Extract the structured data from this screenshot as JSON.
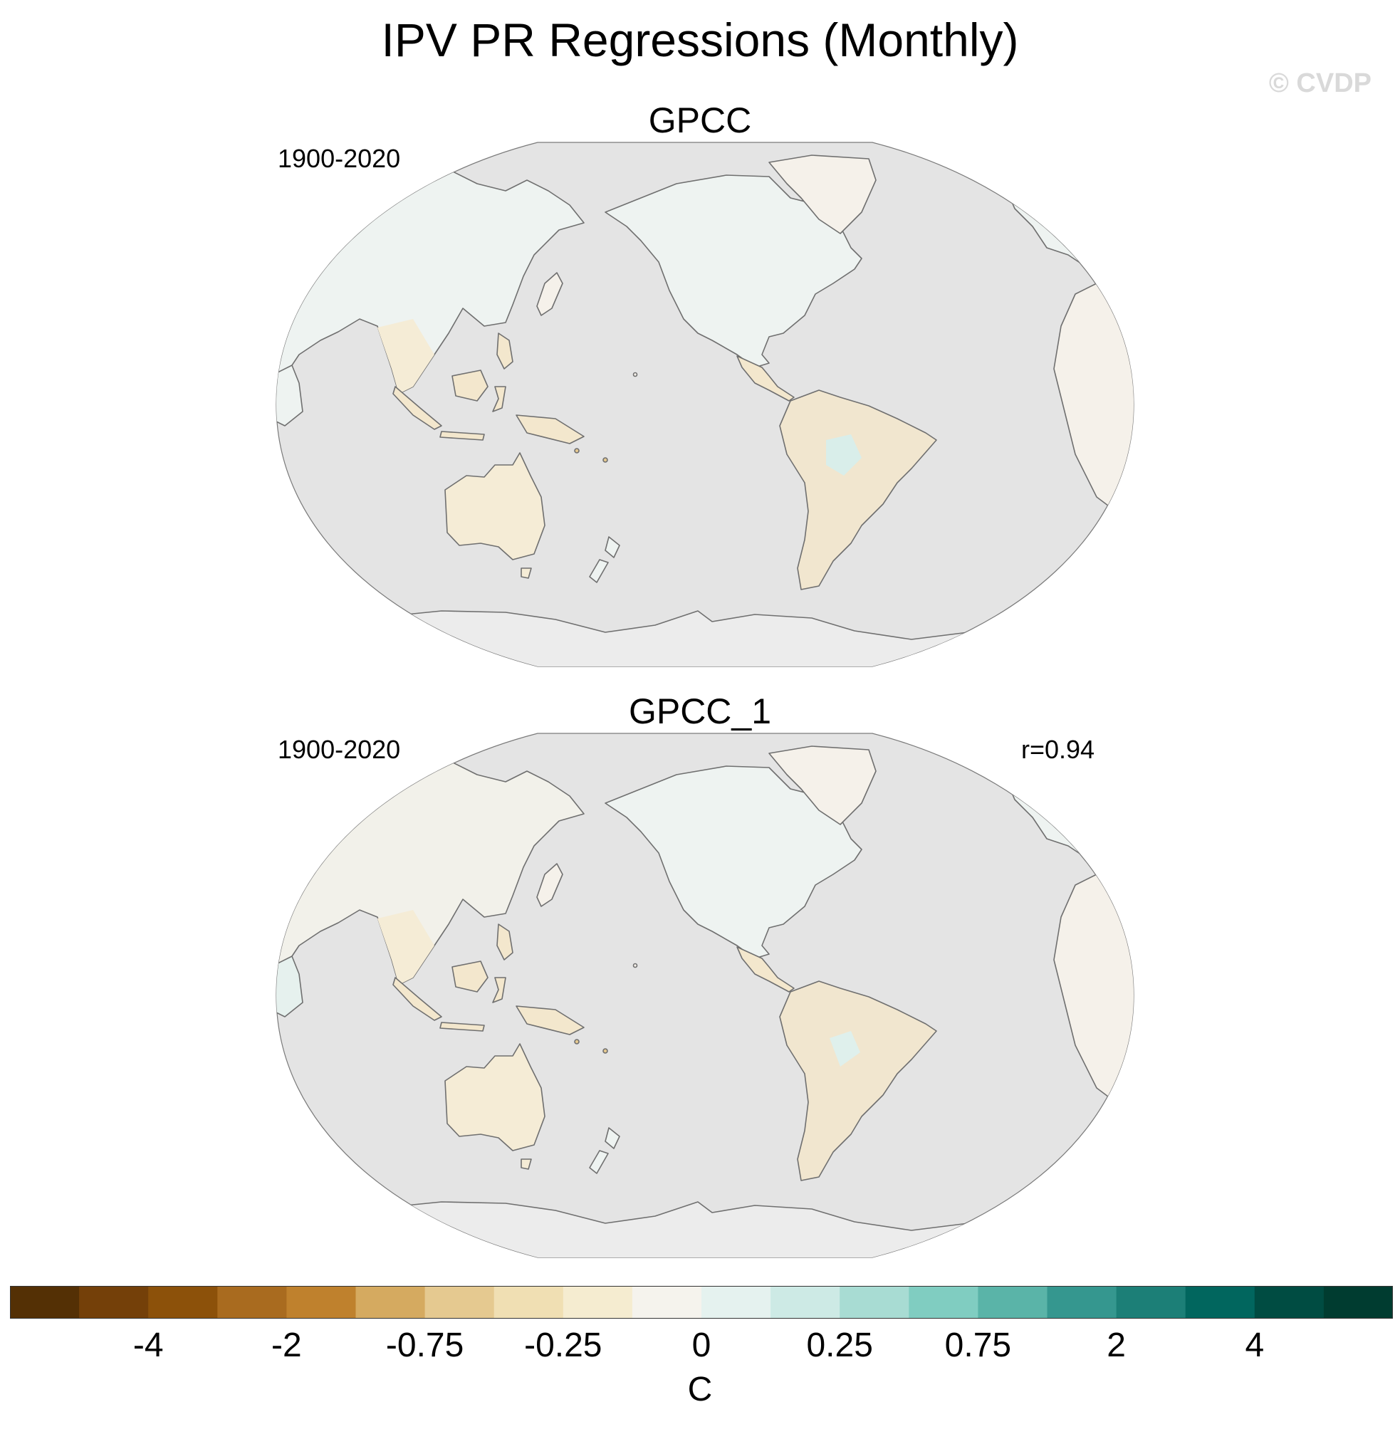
{
  "title": "IPV PR Regressions (Monthly)",
  "watermark": "© CVDP",
  "panels": [
    {
      "title": "GPCC",
      "period": "1900-2020",
      "correlation": ""
    },
    {
      "title": "GPCC_1",
      "period": "1900-2020",
      "correlation": "r=0.94"
    }
  ],
  "colorbar": {
    "units": "C",
    "labels": [
      "-4",
      "-2",
      "-0.75",
      "-0.25",
      "0",
      "0.25",
      "0.75",
      "2",
      "4"
    ],
    "colors": [
      "#543005",
      "#744009",
      "#8c510a",
      "#a96b1f",
      "#bf812d",
      "#d5aa60",
      "#e5c990",
      "#f0dfb3",
      "#f5ecd0",
      "#f5f3ed",
      "#e5f2ef",
      "#cdeae5",
      "#a8dcd3",
      "#80cdc1",
      "#5ab4a8",
      "#35978f",
      "#1c7f77",
      "#01665e",
      "#004c42",
      "#003c30"
    ]
  },
  "map_colors": {
    "ocean": "#e4e4e4",
    "coast": "#6f6f6f",
    "land_neutral": "#f5f1ea"
  }
}
